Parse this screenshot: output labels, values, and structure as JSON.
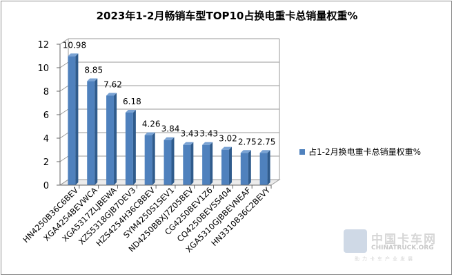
{
  "chart_data": {
    "type": "bar",
    "title": "2023年1-2月畅销车型TOP10占换电重卡总销量权重%",
    "categories": [
      "HN4250B36C6BEV",
      "XGA4254BEVWCA",
      "XGA5317ZLJBEWA",
      "XZS5318GJB7DEV3",
      "HZS4254H36C8BEV",
      "SYM4250S1SEV1",
      "ND4250BBXJ7Z05BEV",
      "CG4250BEV1Z6",
      "CQ4250BEVSS404",
      "XGA5310GJBBEVNEAF",
      "HN3310B36C2BEVY"
    ],
    "series": [
      {
        "name": "占1-2月换电重卡总销量权重%",
        "values": [
          10.98,
          8.85,
          7.62,
          6.18,
          4.26,
          3.84,
          3.43,
          3.43,
          3.02,
          2.75,
          2.75
        ]
      }
    ],
    "data_labels": [
      "10.98",
      "8.85",
      "7.62",
      "6.18",
      "4.26",
      "3.84",
      "3.43",
      "3.43",
      "3.02",
      "2.75",
      "2.75"
    ],
    "y_ticks": [
      0,
      2,
      4,
      6,
      8,
      10,
      12
    ],
    "ylim": [
      0,
      12
    ],
    "grid": true,
    "legend_position": "right",
    "colors": {
      "bar": "#4f81bd",
      "bar_dark": "#2f5b8c",
      "bar_light": "#7aa3d4"
    }
  },
  "watermark": {
    "cn": "中国卡车网",
    "en": "CHINATRUCK.ORG",
    "sub": "助力卡车产业发展"
  }
}
